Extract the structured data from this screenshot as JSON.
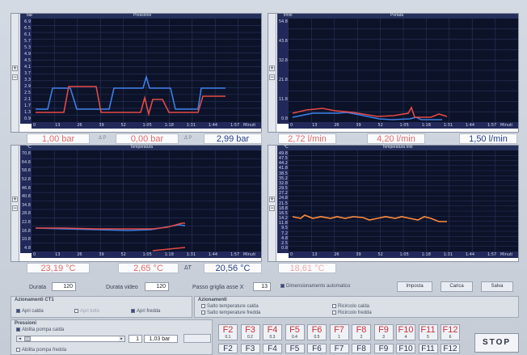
{
  "panels": [
    {
      "id": "pressione",
      "header_left": "bar",
      "title": "Pressione",
      "y_ticks": [
        "6.9",
        "6.5",
        "6.1",
        "5.7",
        "5.3",
        "4.9",
        "4.5",
        "4.1",
        "3.7",
        "3.3",
        "2.9",
        "2.5",
        "2.1",
        "1.7",
        "1.3",
        "0.9"
      ],
      "x_ticks": [
        "0",
        "13",
        "26",
        "39",
        "52",
        "1:05",
        "1:18",
        "1:31",
        "1:44",
        "1:57"
      ],
      "x_unit": "Minuti"
    },
    {
      "id": "portata",
      "header_left": "l/min",
      "title": "Portata",
      "y_ticks": [
        "54.8",
        "43.8",
        "32.8",
        "21.8",
        "11.8",
        "0.8"
      ],
      "x_ticks": [
        "0",
        "13",
        "26",
        "39",
        "52",
        "1:05",
        "1:18",
        "1:31",
        "1:44",
        "1:57"
      ],
      "x_unit": "Minuti"
    },
    {
      "id": "temperatura",
      "header_left": "°C",
      "title": "Temperatura",
      "y_ticks": [
        "70.8",
        "64.8",
        "58.8",
        "52.8",
        "46.8",
        "40.8",
        "34.8",
        "28.8",
        "22.8",
        "16.8",
        "10.8",
        "4.8"
      ],
      "x_ticks": [
        "0",
        "13",
        "26",
        "39",
        "52",
        "1:05",
        "1:18",
        "1:31",
        "1:44",
        "1:57"
      ],
      "x_unit": "Minuti"
    },
    {
      "id": "temperatura_min",
      "header_left": "°C",
      "title": "Temperatura min",
      "y_ticks": [
        "49.8",
        "47.5",
        "44.2",
        "41.8",
        "38.5",
        "35.2",
        "32.8",
        "29.5",
        "27.2",
        "24.8",
        "21.5",
        "18.8",
        "16.5",
        "14.2",
        "11.8",
        "9.5",
        "7.2",
        "4.8",
        "2.5",
        "0.8"
      ],
      "x_ticks": [
        "0",
        "13",
        "26",
        "39",
        "52",
        "1:05",
        "1:18",
        "1:31",
        "1:44",
        "1:57"
      ],
      "x_unit": "Minuti"
    }
  ],
  "readouts": {
    "pressione": [
      {
        "value": "1,00 bar",
        "tag": ""
      },
      {
        "value": "0,00 bar",
        "tag": "Δ P"
      },
      {
        "value": "2,99 bar",
        "tag": "Δ P"
      }
    ],
    "portata": [
      {
        "value": "2,72 l/min"
      },
      {
        "value": "4,20 l/min"
      },
      {
        "value": "1,50 l/min"
      }
    ],
    "temperatura": [
      {
        "value": "23,19 °C"
      },
      {
        "value": "2,65 °C"
      },
      {
        "value": "20,56 °C"
      }
    ],
    "temperatura_min": [
      {
        "value": "18,61 °C"
      }
    ],
    "delta_t_label": "ΔT"
  },
  "settings": {
    "durata_label": "Durata",
    "durata_value": "120",
    "durata_video_label": "Durata video",
    "durata_video_value": "120",
    "passo_label": "Passo griglia asse X",
    "passo_value": "13",
    "auto_label": "Dimensionamento automatico",
    "btn_imposta": "Imposta",
    "btn_carica": "Carica",
    "btn_salva": "Salva"
  },
  "azionamenti_ct1": {
    "title": "Azionamenti CT1",
    "items": [
      {
        "label": "Apri calda",
        "checked": true
      },
      {
        "label": "Apri tutto",
        "checked": false
      },
      {
        "label": "Apri fredda",
        "checked": true
      }
    ]
  },
  "azionamenti": {
    "title": "Azionamenti",
    "items": [
      {
        "label": "Salto temperature calda",
        "checked": false
      },
      {
        "label": "Salto temperature fredda",
        "checked": false
      },
      {
        "label": "Ricircolo calda",
        "checked": false
      },
      {
        "label": "Ricircolo fredda",
        "checked": false
      }
    ]
  },
  "pressioni": {
    "title": "Pressioni",
    "pump_calda": "Abilita pompa calda",
    "pump_fredda": "Abilita pompa fredda",
    "set_value": "1",
    "bar_value": "1,03 bar"
  },
  "fkeys": {
    "row1": [
      {
        "key": "F2",
        "sub": "0.1"
      },
      {
        "key": "F3",
        "sub": "0.2"
      },
      {
        "key": "F4",
        "sub": "0.3"
      },
      {
        "key": "F5",
        "sub": "0.4"
      },
      {
        "key": "F6",
        "sub": "0.5"
      },
      {
        "key": "F7",
        "sub": "1"
      },
      {
        "key": "F8",
        "sub": "2"
      },
      {
        "key": "F9",
        "sub": "3"
      },
      {
        "key": "F10",
        "sub": "4"
      },
      {
        "key": "F11",
        "sub": "5"
      },
      {
        "key": "F12",
        "sub": "6"
      }
    ],
    "row2": [
      "F2",
      "F3",
      "F4",
      "F5",
      "F6",
      "F7",
      "F8",
      "F9",
      "F10",
      "F11",
      "F12"
    ]
  },
  "stop_label": "STOP",
  "colors": {
    "plot_bg": "#0c1228",
    "red": "#e34a46",
    "blue": "#3d7fe6",
    "orange": "#ff8a3c"
  }
}
